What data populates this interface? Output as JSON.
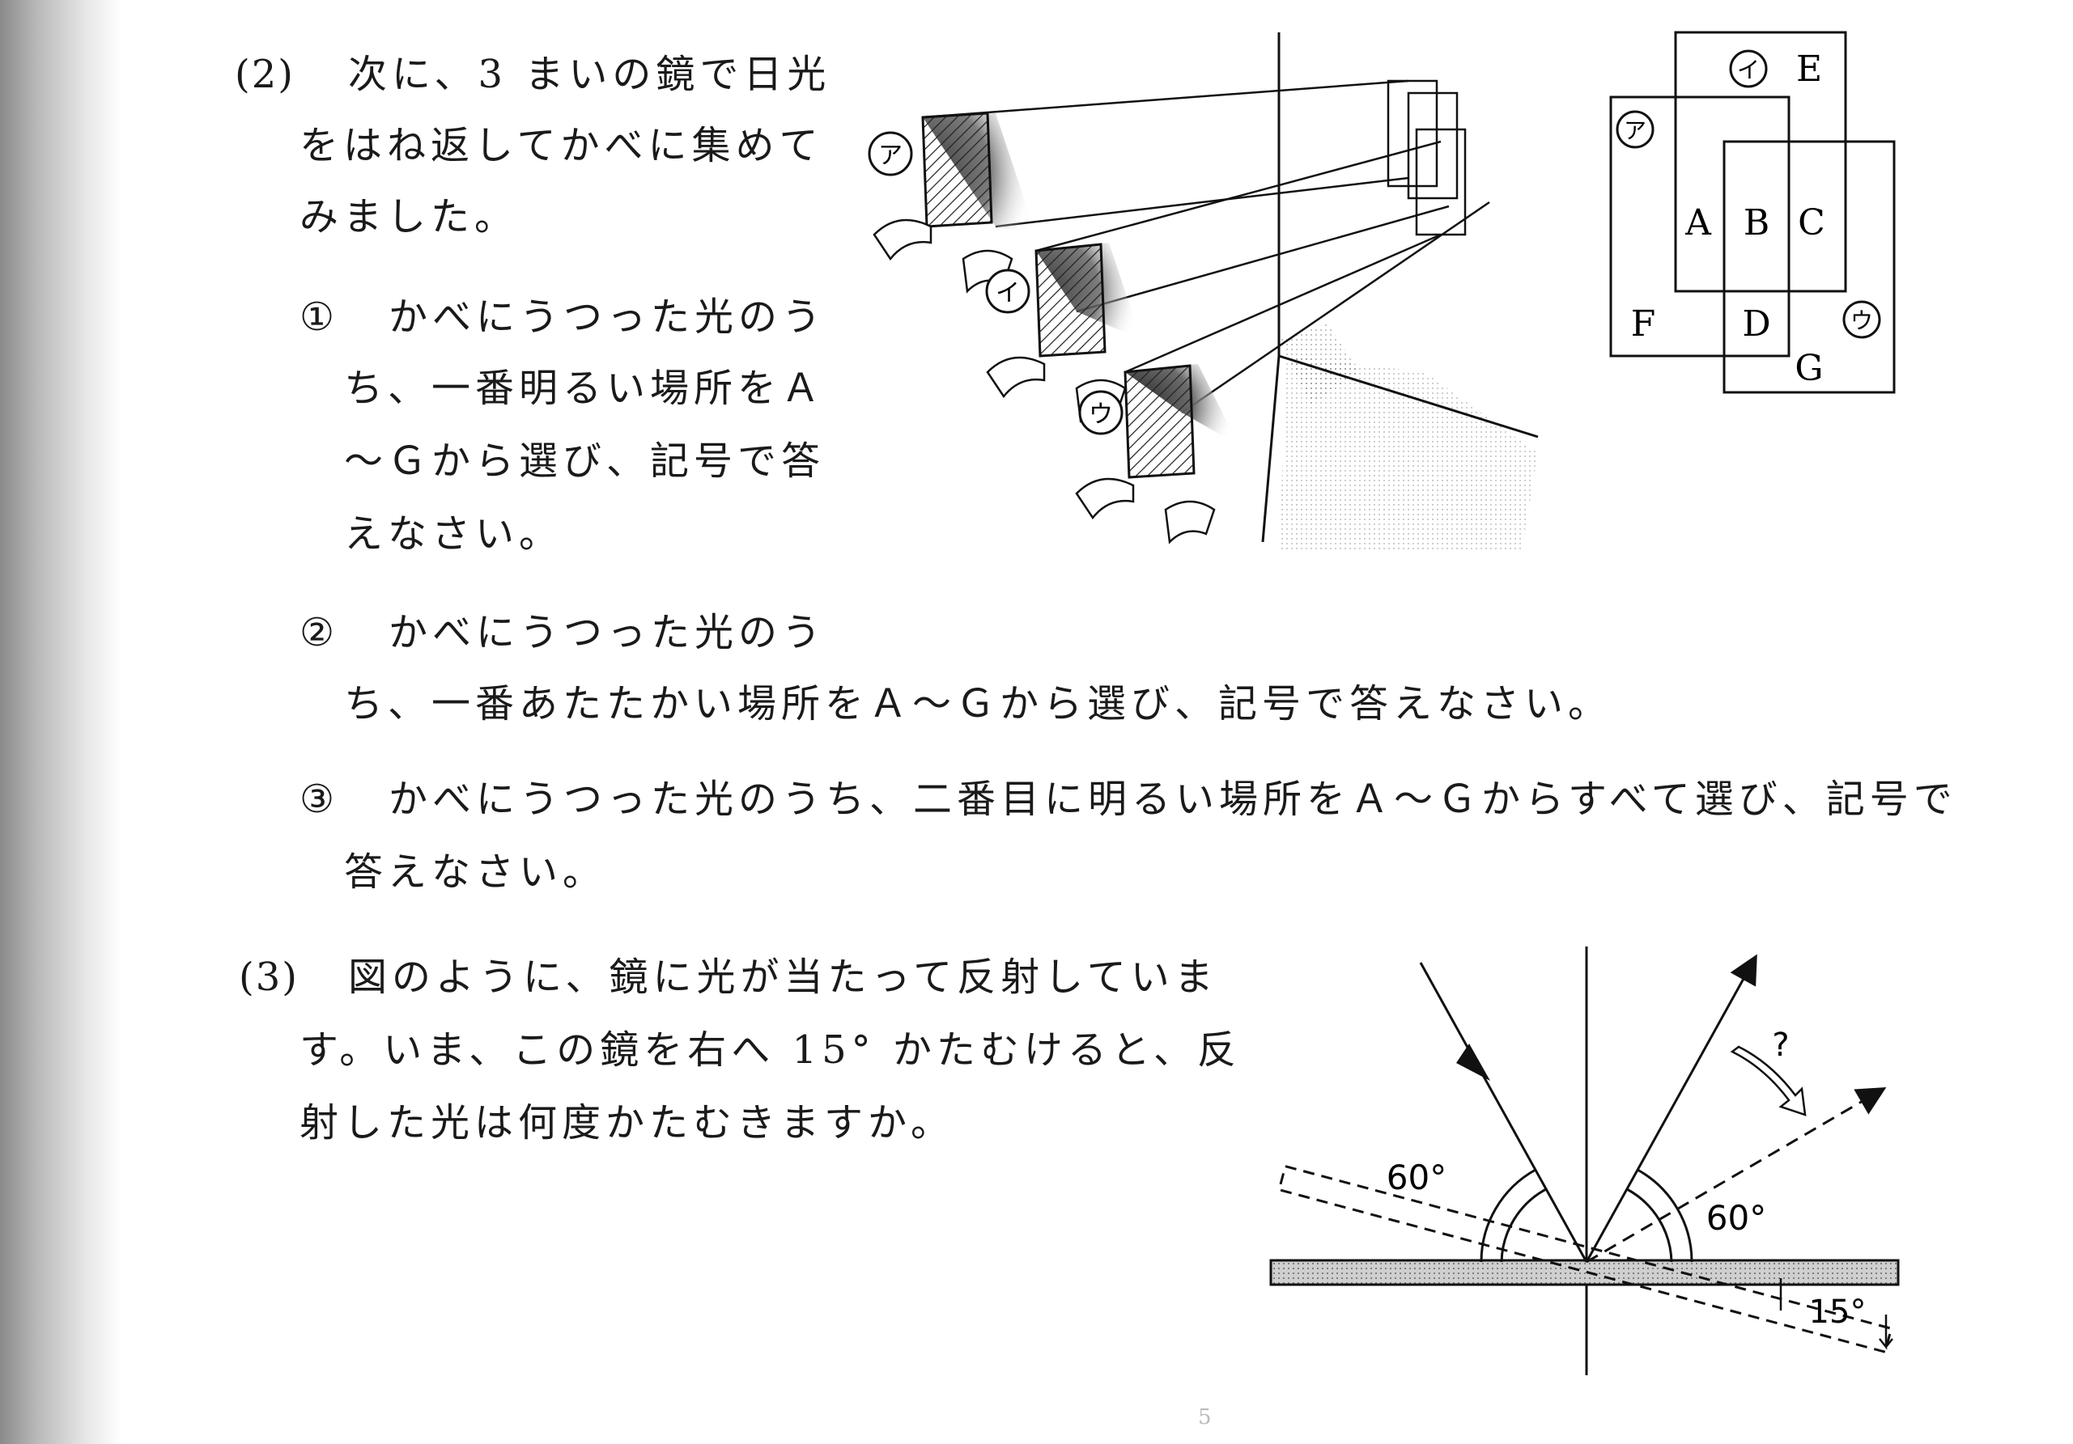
{
  "q2": {
    "number": "(2)",
    "intro": [
      "次に、3 まいの鏡で日光",
      "をはね返してかべに集めて",
      "みました。"
    ],
    "items": [
      {
        "mark": "①",
        "lines": [
          "かべにうつった光のう",
          "ち、一番明るい場所をＡ",
          "～Ｇから選び、記号で答",
          "えなさい。"
        ]
      },
      {
        "mark": "②",
        "lines": [
          "かべにうつった光のう",
          "ち、一番あたたかい場所をＡ～Ｇから選び、記号で答えなさい。"
        ]
      },
      {
        "mark": "③",
        "lines": [
          "かべにうつった光のうち、二番目に明るい場所をＡ～Ｇからすべて選び、記号で",
          "答えなさい。"
        ]
      }
    ],
    "mirror_labels": [
      "ア",
      "イ",
      "ウ"
    ],
    "region_labels": [
      "E",
      "A",
      "B",
      "C",
      "F",
      "D",
      "G"
    ]
  },
  "q3": {
    "number": "(3)",
    "lines": [
      "図のように、鏡に光が当たって反射していま",
      "す。いま、この鏡を右へ 15°  かたむけると、反",
      "射した光は何度かたむきますか。"
    ],
    "diagram": {
      "angle_left": "60°",
      "angle_right": "60°",
      "tilt": "15°",
      "question": "?"
    }
  },
  "page_mark": "5"
}
